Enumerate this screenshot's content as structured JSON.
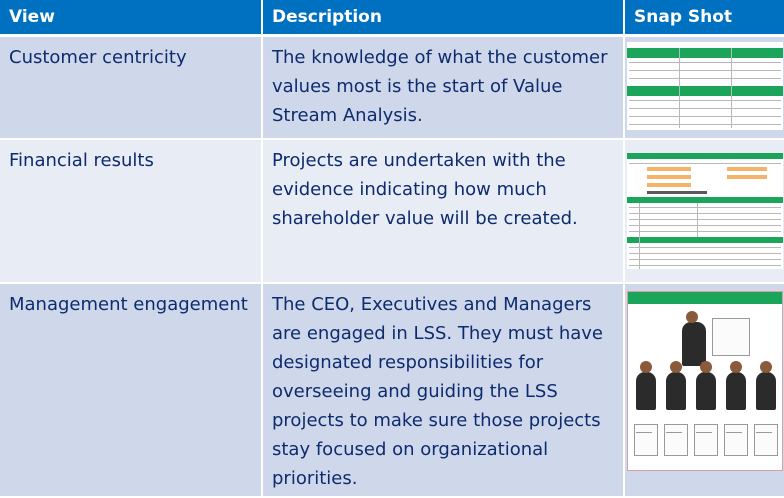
{
  "table": {
    "headers": {
      "view": "View",
      "description": "Description",
      "snapshot": "Snap Shot"
    },
    "rows": [
      {
        "view": "Customer centricity",
        "description": "The knowledge of what the customer values most is the start of Value Stream Analysis.",
        "snapshot_icon": "spreadsheet-thumbnail-icon"
      },
      {
        "view": "Financial results",
        "description": "Projects are undertaken with  the evidence indicating how much shareholder value will be created.",
        "snapshot_icon": "financial-sheet-thumbnail-icon"
      },
      {
        "view": "Management engagement",
        "description": "The CEO, Executives and Managers are engaged in LSS. They must have designated responsibilities for overseeing and guiding the LSS projects to make sure those projects stay focused on organizational priorities.",
        "snapshot_icon": "team-photo-thumbnail-icon"
      }
    ]
  },
  "colors": {
    "header_bg": "#0070c0",
    "header_text": "#ffffff",
    "body_text": "#0d2b6e",
    "row_odd": "#cfd8ea",
    "row_even": "#e8ecf5",
    "thumb_accent": "#1aa55a"
  }
}
